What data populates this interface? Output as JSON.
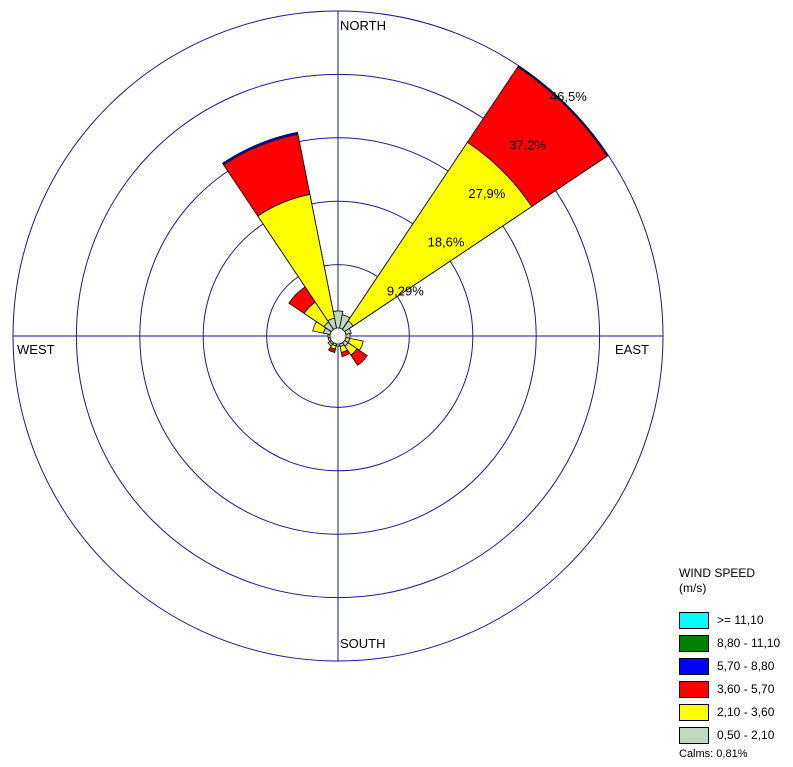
{
  "chart_data": {
    "type": "wind-rose",
    "direction_labels": {
      "north": "NORTH",
      "south": "SOUTH",
      "east": "EAST",
      "west": "WEST"
    },
    "ring_values": [
      9.29,
      18.6,
      27.9,
      37.2,
      46.5
    ],
    "ring_labels": [
      "9,29%",
      "18,6%",
      "27,9%",
      "37,2%",
      "46,5%"
    ],
    "ring_label_bearing": 40,
    "max_frequency_percent": 46.5,
    "sector_count": 16,
    "sector_width_deg": 22.5,
    "bins": [
      {
        "label": ">= 11,10",
        "color": "#00ffff"
      },
      {
        "label": "8,80 - 11,10",
        "color": "#008000"
      },
      {
        "label": "5,70 - 8,80",
        "color": "#0000ff"
      },
      {
        "label": "3,60 - 5,70",
        "color": "#ff0000"
      },
      {
        "label": "2,10 - 3,60",
        "color": "#ffff00"
      },
      {
        "label": "0,50 - 2,10",
        "color": "#c0d8c0"
      }
    ],
    "sectors": [
      {
        "direction": "N",
        "bearing": 0,
        "cumulative": [
          2.5,
          2.5,
          2.5,
          2.5
        ]
      },
      {
        "direction": "NNE",
        "bearing": 22.5,
        "cumulative": [
          2.0,
          2.0,
          2.0,
          2.0
        ]
      },
      {
        "direction": "NE",
        "bearing": 45,
        "cumulative": [
          1.5,
          33.0,
          46.3,
          46.5
        ]
      },
      {
        "direction": "ENE",
        "bearing": 67.5,
        "cumulative": [
          0.8,
          0.8,
          0.8,
          0.8
        ]
      },
      {
        "direction": "E",
        "bearing": 90,
        "cumulative": [
          0.6,
          0.6,
          0.6,
          0.6
        ]
      },
      {
        "direction": "ESE",
        "bearing": 112.5,
        "cumulative": [
          0.6,
          2.6,
          2.6,
          2.6
        ]
      },
      {
        "direction": "SE",
        "bearing": 135,
        "cumulative": [
          0.6,
          2.2,
          4.0,
          4.0
        ]
      },
      {
        "direction": "SSE",
        "bearing": 157.5,
        "cumulative": [
          0.4,
          1.3,
          1.9,
          1.9
        ]
      },
      {
        "direction": "S",
        "bearing": 180,
        "cumulative": [
          0.3,
          0.3,
          0.3,
          0.3
        ]
      },
      {
        "direction": "SSW",
        "bearing": 202.5,
        "cumulative": [
          0.3,
          0.8,
          1.3,
          1.3
        ]
      },
      {
        "direction": "SW",
        "bearing": 225,
        "cumulative": [
          0.3,
          0.6,
          0.6,
          0.6
        ]
      },
      {
        "direction": "WSW",
        "bearing": 247.5,
        "cumulative": [
          0.3,
          0.3,
          0.3,
          0.3
        ]
      },
      {
        "direction": "W",
        "bearing": 270,
        "cumulative": [
          0.3,
          0.3,
          0.3,
          0.3
        ]
      },
      {
        "direction": "WNW",
        "bearing": 292.5,
        "cumulative": [
          1.0,
          2.6,
          2.6,
          2.6
        ]
      },
      {
        "direction": "NW",
        "bearing": 315,
        "cumulative": [
          1.3,
          4.8,
          7.5,
          7.5
        ]
      },
      {
        "direction": "NNW",
        "bearing": 337.5,
        "cumulative": [
          1.5,
          20.0,
          29.0,
          29.3
        ]
      }
    ],
    "calms_percent": 0.81
  },
  "legend": {
    "title": "WIND SPEED",
    "unit": "(m/s)",
    "calms": "Calms: 0,81%"
  },
  "colors": {
    "grid": "#1a1a8c",
    "outline": "#000000"
  }
}
